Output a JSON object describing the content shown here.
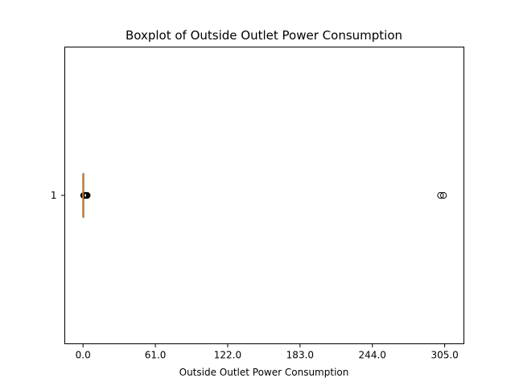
{
  "chart_data": {
    "type": "boxplot",
    "orientation": "horizontal",
    "title": "Boxplot of Outside Outlet Power Consumption",
    "xlabel": "Outside Outlet Power Consumption",
    "ylabel": "",
    "xlim": [
      -15.4,
      321.2
    ],
    "xticks": [
      0.0,
      61.0,
      122.0,
      183.0,
      244.0,
      305.0
    ],
    "xtick_labels": [
      "0.0",
      "61.0",
      "122.0",
      "183.0",
      "244.0",
      "305.0"
    ],
    "categories": [
      "1"
    ],
    "grid": false,
    "series": [
      {
        "category": "1",
        "whisker_low": 0.0,
        "q1": 0.0,
        "median": 0.0,
        "q3": 0.0,
        "whisker_high": 0.0,
        "outliers": [
          0.5,
          1.0,
          1.5,
          2.0,
          2.5,
          3.0,
          3.5,
          301.5,
          304.0
        ]
      }
    ],
    "colors": {
      "median": "#c87f3a",
      "outlier_edge": "#000000",
      "axes": "#000000"
    }
  }
}
